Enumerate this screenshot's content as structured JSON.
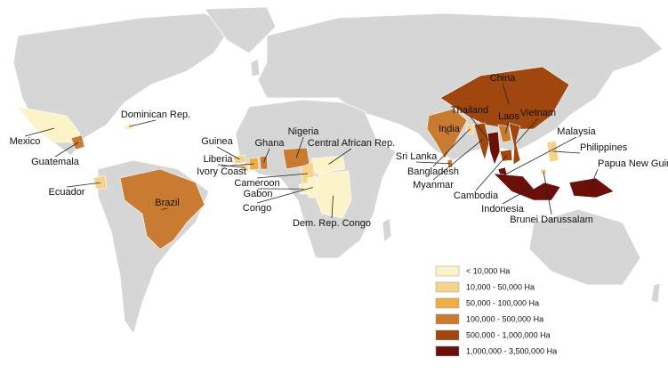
{
  "countries": [
    {
      "name": "China",
      "color": "#a0470f"
    },
    {
      "name": "Thailand",
      "color": "#6b0f0a"
    },
    {
      "name": "Laos",
      "color": "#c97b32"
    },
    {
      "name": "Vietnam",
      "color": "#a0470f"
    },
    {
      "name": "India",
      "color": "#c97b32"
    },
    {
      "name": "Malaysia",
      "color": "#6b0f0a"
    },
    {
      "name": "Philippines",
      "color": "#f6d38a"
    },
    {
      "name": "Sri Lanka",
      "color": "#c97b32"
    },
    {
      "name": "Bangladesh",
      "color": "#f6d38a"
    },
    {
      "name": "Papua New Guinea",
      "color": "#6b0f0a"
    },
    {
      "name": "Myanmar",
      "color": "#a0470f"
    },
    {
      "name": "Cambodia",
      "color": "#a0470f"
    },
    {
      "name": "Indonesia",
      "color": "#6b0f0a"
    },
    {
      "name": "Brunei Darussalam",
      "color": "#f6d38a"
    },
    {
      "name": "Mexico",
      "color": "#fdf3c9"
    },
    {
      "name": "Guatemala",
      "color": "#c97b32"
    },
    {
      "name": "Dominican Rep.",
      "color": "#fdf3c9"
    },
    {
      "name": "Ecuador",
      "color": "#f6d38a"
    },
    {
      "name": "Brazil",
      "color": "#c97b32"
    },
    {
      "name": "Guinea",
      "color": "#f6d38a"
    },
    {
      "name": "Ghana",
      "color": "#c97b32"
    },
    {
      "name": "Nigeria",
      "color": "#c97b32"
    },
    {
      "name": "Liberia",
      "color": "#f6d38a"
    },
    {
      "name": "Ivory Coast",
      "color": "#f0ac45"
    },
    {
      "name": "Central African Rep.",
      "color": "#fdf3c9"
    },
    {
      "name": "Cameroon",
      "color": "#f6d38a"
    },
    {
      "name": "Gabon",
      "color": "#fdf3c9"
    },
    {
      "name": "Congo",
      "color": "#fdf3c9"
    },
    {
      "name": "Dem. Rep. Congo",
      "color": "#fdf3c9"
    }
  ],
  "legend": {
    "items": [
      {
        "label": "< 10,000 Ha",
        "color": "#fdf3c9"
      },
      {
        "label": "10,000 - 50,000 Ha",
        "color": "#f6d38a"
      },
      {
        "label": "50,000 - 100,000 Ha",
        "color": "#f0ac45"
      },
      {
        "label": "100,000 - 500,000 Ha",
        "color": "#c97b32"
      },
      {
        "label": "500,000 - 1,000,000 Ha",
        "color": "#a0470f"
      },
      {
        "label": "1,000,000 - 3,500,000 Ha",
        "color": "#6b0f0a"
      }
    ]
  }
}
